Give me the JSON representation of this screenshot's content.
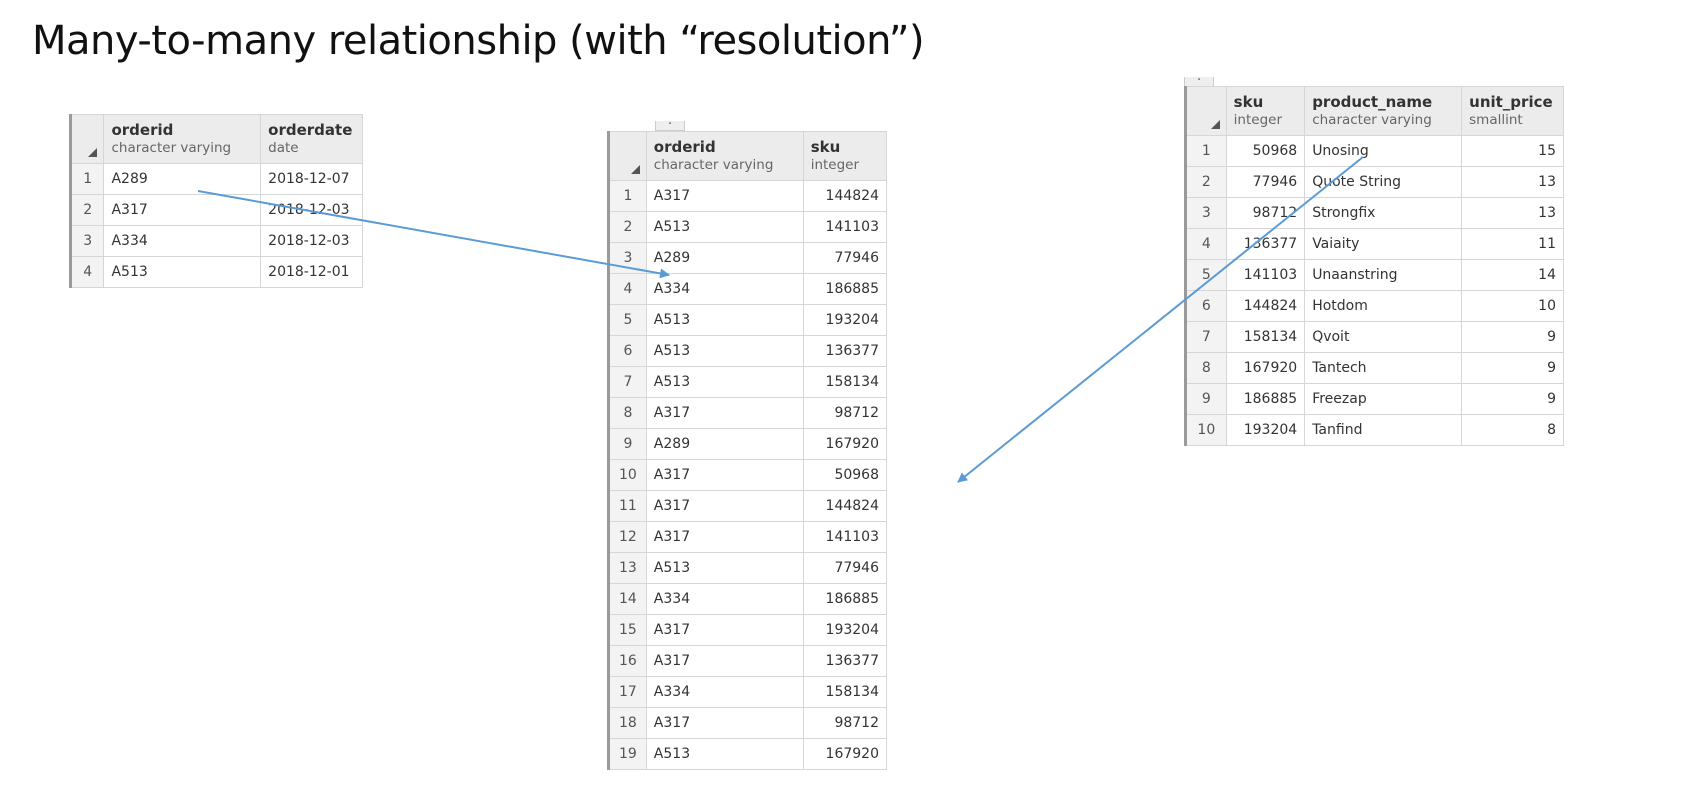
{
  "title": "Many-to-many relationship (with “resolution”)",
  "colors": {
    "arrow": "#5b9bd5",
    "header_bg": "#ececec",
    "grid_line": "#d6d6d6"
  },
  "orders": {
    "columns": [
      {
        "name": "orderid",
        "type": "character varying"
      },
      {
        "name": "orderdate",
        "type": "date"
      }
    ],
    "rows": [
      {
        "n": "1",
        "orderid": "A289",
        "orderdate": "2018-12-07"
      },
      {
        "n": "2",
        "orderid": "A317",
        "orderdate": "2018-12-03"
      },
      {
        "n": "3",
        "orderid": "A334",
        "orderdate": "2018-12-03"
      },
      {
        "n": "4",
        "orderid": "A513",
        "orderdate": "2018-12-01"
      }
    ]
  },
  "order_items": {
    "columns": [
      {
        "name": "orderid",
        "type": "character varying"
      },
      {
        "name": "sku",
        "type": "integer"
      }
    ],
    "rows": [
      {
        "n": "1",
        "orderid": "A317",
        "sku": "144824"
      },
      {
        "n": "2",
        "orderid": "A513",
        "sku": "141103"
      },
      {
        "n": "3",
        "orderid": "A289",
        "sku": "77946"
      },
      {
        "n": "4",
        "orderid": "A334",
        "sku": "186885"
      },
      {
        "n": "5",
        "orderid": "A513",
        "sku": "193204"
      },
      {
        "n": "6",
        "orderid": "A513",
        "sku": "136377"
      },
      {
        "n": "7",
        "orderid": "A513",
        "sku": "158134"
      },
      {
        "n": "8",
        "orderid": "A317",
        "sku": "98712"
      },
      {
        "n": "9",
        "orderid": "A289",
        "sku": "167920"
      },
      {
        "n": "10",
        "orderid": "A317",
        "sku": "50968"
      },
      {
        "n": "11",
        "orderid": "A317",
        "sku": "144824"
      },
      {
        "n": "12",
        "orderid": "A317",
        "sku": "141103"
      },
      {
        "n": "13",
        "orderid": "A513",
        "sku": "77946"
      },
      {
        "n": "14",
        "orderid": "A334",
        "sku": "186885"
      },
      {
        "n": "15",
        "orderid": "A317",
        "sku": "193204"
      },
      {
        "n": "16",
        "orderid": "A317",
        "sku": "136377"
      },
      {
        "n": "17",
        "orderid": "A334",
        "sku": "158134"
      },
      {
        "n": "18",
        "orderid": "A317",
        "sku": "98712"
      },
      {
        "n": "19",
        "orderid": "A513",
        "sku": "167920"
      }
    ]
  },
  "products": {
    "columns": [
      {
        "name": "sku",
        "type": "integer"
      },
      {
        "name": "product_name",
        "type": "character varying"
      },
      {
        "name": "unit_price",
        "type": "smallint"
      }
    ],
    "rows": [
      {
        "n": "1",
        "sku": "50968",
        "product_name": "Unosing",
        "unit_price": "15"
      },
      {
        "n": "2",
        "sku": "77946",
        "product_name": "Quote String",
        "unit_price": "13"
      },
      {
        "n": "3",
        "sku": "98712",
        "product_name": "Strongfix",
        "unit_price": "13"
      },
      {
        "n": "4",
        "sku": "136377",
        "product_name": "Vaiaity",
        "unit_price": "11"
      },
      {
        "n": "5",
        "sku": "141103",
        "product_name": "Unaanstring",
        "unit_price": "14"
      },
      {
        "n": "6",
        "sku": "144824",
        "product_name": "Hotdom",
        "unit_price": "10"
      },
      {
        "n": "7",
        "sku": "158134",
        "product_name": "Qvoit",
        "unit_price": "9"
      },
      {
        "n": "8",
        "sku": "167920",
        "product_name": "Tantech",
        "unit_price": "9"
      },
      {
        "n": "9",
        "sku": "186885",
        "product_name": "Freezap",
        "unit_price": "9"
      },
      {
        "n": "10",
        "sku": "193204",
        "product_name": "Tanfind",
        "unit_price": "8"
      }
    ]
  }
}
